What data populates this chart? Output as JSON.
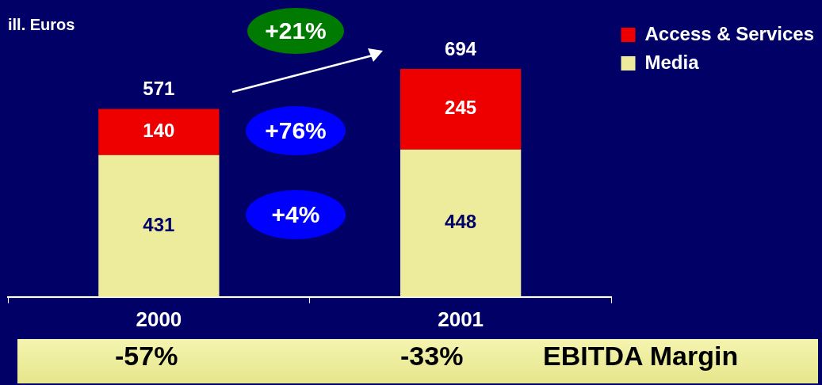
{
  "chart_data": {
    "type": "bar",
    "title": "ill. Euros",
    "stacked": true,
    "categories": [
      "2000",
      "2001"
    ],
    "series": [
      {
        "name": "Media",
        "color": "#ecec9c",
        "values": [
          431,
          448
        ]
      },
      {
        "name": "Access & Services",
        "color": "#ee0000",
        "values": [
          140,
          245
        ]
      }
    ],
    "totals": [
      "571",
      "694"
    ],
    "data_labels": true,
    "legend": "top right",
    "grid": false,
    "annotations": [
      "+21%",
      "+76%",
      "+4%",
      "-57%",
      "-33%",
      "EBITDA Margin"
    ]
  }
}
